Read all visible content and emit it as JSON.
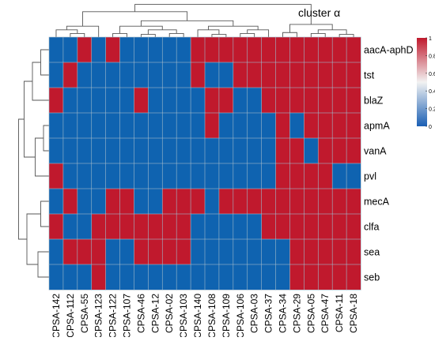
{
  "chart_data": {
    "type": "heatmap",
    "cluster_label": "cluster α",
    "columns": [
      "CPSA-142",
      "CPSA-112",
      "CPSA-55",
      "CPSA-123",
      "CPSA-122",
      "CPSA-107",
      "CPSA-46",
      "CPSA-12",
      "CPSA-02",
      "CPSA-103",
      "CPSA-140",
      "CPSA-108",
      "CPSA-109",
      "CPSA-106",
      "CPSA-03",
      "CPSA-37",
      "CPSA-34",
      "CPSA-29",
      "CPSA-05",
      "CPSA-47",
      "CPSA-11",
      "CPSA-18"
    ],
    "rows": [
      "aacA-aphD",
      "tst",
      "blaZ",
      "apmA",
      "vanA",
      "pvl",
      "mecA",
      "clfa",
      "sea",
      "seb"
    ],
    "values": [
      [
        0,
        0,
        1,
        0,
        1,
        0,
        0,
        0,
        0,
        0,
        1,
        1,
        1,
        1,
        1,
        1,
        1,
        1,
        1,
        1,
        1,
        1
      ],
      [
        0,
        1,
        0,
        0,
        0,
        0,
        0,
        0,
        0,
        0,
        1,
        0,
        0,
        1,
        1,
        1,
        1,
        1,
        1,
        1,
        1,
        1
      ],
      [
        1,
        0,
        0,
        0,
        0,
        0,
        1,
        0,
        0,
        0,
        0,
        1,
        1,
        0,
        0,
        1,
        1,
        1,
        1,
        1,
        1,
        1
      ],
      [
        0,
        0,
        0,
        0,
        0,
        0,
        0,
        0,
        0,
        0,
        0,
        1,
        0,
        0,
        0,
        0,
        1,
        0,
        1,
        1,
        1,
        1
      ],
      [
        0,
        0,
        0,
        0,
        0,
        0,
        0,
        0,
        0,
        0,
        0,
        0,
        0,
        0,
        0,
        0,
        1,
        1,
        0,
        1,
        1,
        1
      ],
      [
        1,
        0,
        0,
        0,
        0,
        0,
        0,
        0,
        0,
        0,
        0,
        0,
        0,
        0,
        0,
        0,
        1,
        1,
        1,
        1,
        0,
        0
      ],
      [
        0,
        1,
        0,
        0,
        1,
        1,
        0,
        0,
        1,
        1,
        1,
        0,
        1,
        1,
        1,
        1,
        1,
        1,
        1,
        1,
        1,
        1
      ],
      [
        1,
        0,
        0,
        1,
        1,
        1,
        1,
        1,
        1,
        1,
        0,
        0,
        0,
        0,
        0,
        1,
        1,
        1,
        1,
        1,
        1,
        1
      ],
      [
        0,
        1,
        1,
        1,
        0,
        0,
        1,
        1,
        1,
        1,
        0,
        0,
        0,
        0,
        0,
        0,
        0,
        1,
        1,
        1,
        1,
        1
      ],
      [
        0,
        0,
        0,
        1,
        0,
        0,
        0,
        0,
        0,
        0,
        0,
        0,
        0,
        0,
        0,
        0,
        0,
        1,
        1,
        1,
        1,
        1
      ]
    ],
    "legend": {
      "min": 0,
      "max": 1,
      "ticks": [
        "0",
        "0.2",
        "0.4",
        "0.6",
        "0.8",
        "1"
      ],
      "low_color": "#1a5fb4",
      "mid_color": "#f2f2f2",
      "high_color": "#c0192d"
    },
    "colors": {
      "low": "#0f63b0",
      "high": "#c0192d",
      "grid": "#9fb8c9",
      "dendrogram": "#555555"
    }
  }
}
